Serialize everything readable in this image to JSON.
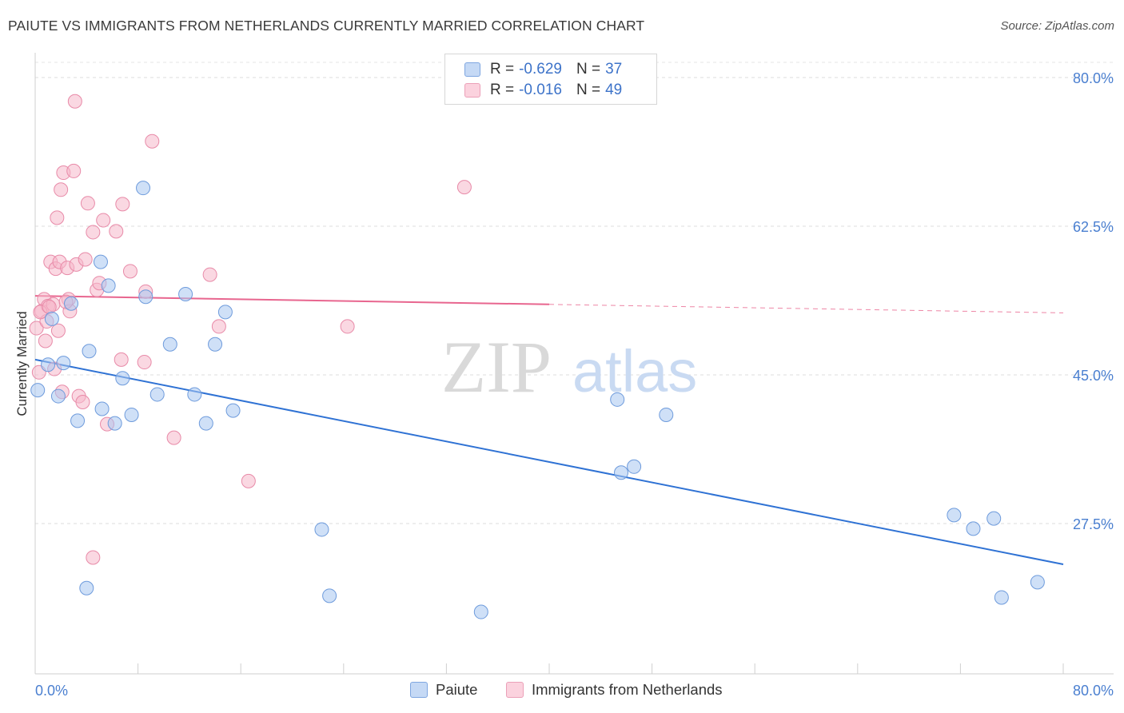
{
  "title": "PAIUTE VS IMMIGRANTS FROM NETHERLANDS CURRENTLY MARRIED CORRELATION CHART",
  "source": "Source: ZipAtlas.com",
  "watermark": {
    "zip": "ZIP",
    "atlas": "atlas"
  },
  "legend": {
    "rows": [
      {
        "r_label": "R =",
        "r_value": "-0.629",
        "n_label": "N =",
        "n_value": "37",
        "color": "#a8c6f0"
      },
      {
        "r_label": "R =",
        "r_value": "-0.016",
        "n_label": "N =",
        "n_value": "49",
        "color": "#f5b8cb"
      }
    ]
  },
  "bottom_legend": {
    "series1": "Paiute",
    "series2": "Immigrants from Netherlands"
  },
  "chart_data": {
    "type": "scatter",
    "xlabel": "",
    "ylabel": "Currently Married",
    "xlim": [
      0,
      80
    ],
    "ylim": [
      10,
      82
    ],
    "x_tick_labels": [
      "0.0%",
      "80.0%"
    ],
    "y_ticks": [
      27.5,
      45.0,
      62.5,
      80.0
    ],
    "y_tick_labels": [
      "27.5%",
      "45.0%",
      "62.5%",
      "80.0%"
    ],
    "colors": {
      "paiute_fill": "#a8c6f0",
      "paiute_stroke": "#6e9bdc",
      "paiute_line": "#2f72d4",
      "neth_fill": "#f5b8cb",
      "neth_stroke": "#e88aa8",
      "neth_line": "#e8668f",
      "axis_text": "#4a7fd0"
    },
    "series": [
      {
        "name": "Paiute",
        "points": [
          [
            0.2,
            43.2
          ],
          [
            1.0,
            46.2
          ],
          [
            1.3,
            51.6
          ],
          [
            1.8,
            42.5
          ],
          [
            2.2,
            46.4
          ],
          [
            2.8,
            53.4
          ],
          [
            3.3,
            39.6
          ],
          [
            4.0,
            19.9
          ],
          [
            4.2,
            47.8
          ],
          [
            5.1,
            58.3
          ],
          [
            5.2,
            41.0
          ],
          [
            5.7,
            55.5
          ],
          [
            6.2,
            39.3
          ],
          [
            6.8,
            44.6
          ],
          [
            7.5,
            40.3
          ],
          [
            8.4,
            67.0
          ],
          [
            8.6,
            54.2
          ],
          [
            9.5,
            42.7
          ],
          [
            10.5,
            48.6
          ],
          [
            11.7,
            54.5
          ],
          [
            12.4,
            42.7
          ],
          [
            13.3,
            39.3
          ],
          [
            14.0,
            48.6
          ],
          [
            14.8,
            52.4
          ],
          [
            15.4,
            40.8
          ],
          [
            22.3,
            26.8
          ],
          [
            22.9,
            19.0
          ],
          [
            34.7,
            17.1
          ],
          [
            45.3,
            42.1
          ],
          [
            45.6,
            33.5
          ],
          [
            46.6,
            34.2
          ],
          [
            49.1,
            40.3
          ],
          [
            71.5,
            28.5
          ],
          [
            73.0,
            26.9
          ],
          [
            74.6,
            28.1
          ],
          [
            75.2,
            18.8
          ],
          [
            78.0,
            20.6
          ]
        ],
        "trend": {
          "x": [
            0,
            80
          ],
          "y": [
            46.8,
            22.7
          ]
        }
      },
      {
        "name": "Immigrants from Netherlands",
        "points": [
          [
            0.1,
            50.5
          ],
          [
            0.3,
            45.3
          ],
          [
            0.5,
            52.5
          ],
          [
            0.7,
            53.9
          ],
          [
            0.9,
            51.3
          ],
          [
            1.0,
            53.1
          ],
          [
            1.2,
            58.3
          ],
          [
            1.4,
            53.3
          ],
          [
            1.5,
            45.7
          ],
          [
            1.6,
            57.5
          ],
          [
            1.7,
            63.5
          ],
          [
            1.8,
            50.2
          ],
          [
            1.9,
            58.3
          ],
          [
            2.0,
            66.8
          ],
          [
            2.1,
            43.0
          ],
          [
            2.2,
            68.8
          ],
          [
            2.5,
            57.6
          ],
          [
            2.6,
            53.9
          ],
          [
            2.7,
            52.5
          ],
          [
            3.0,
            69.0
          ],
          [
            3.1,
            77.2
          ],
          [
            3.2,
            58.0
          ],
          [
            3.4,
            42.5
          ],
          [
            3.7,
            41.8
          ],
          [
            3.9,
            58.6
          ],
          [
            4.1,
            65.2
          ],
          [
            4.5,
            61.8
          ],
          [
            4.8,
            55.0
          ],
          [
            5.0,
            55.8
          ],
          [
            5.3,
            63.2
          ],
          [
            5.6,
            39.2
          ],
          [
            6.3,
            61.9
          ],
          [
            6.7,
            46.8
          ],
          [
            6.8,
            65.1
          ],
          [
            7.4,
            57.2
          ],
          [
            8.5,
            46.5
          ],
          [
            8.6,
            54.8
          ],
          [
            9.1,
            72.5
          ],
          [
            10.8,
            37.6
          ],
          [
            13.6,
            56.8
          ],
          [
            14.3,
            50.7
          ],
          [
            16.6,
            32.5
          ],
          [
            24.3,
            50.7
          ],
          [
            33.4,
            67.1
          ],
          [
            4.5,
            23.5
          ],
          [
            0.4,
            52.4
          ],
          [
            1.1,
            53.0
          ],
          [
            2.4,
            53.6
          ],
          [
            0.8,
            49.0
          ]
        ],
        "trend": {
          "x": [
            0,
            40
          ],
          "y": [
            54.3,
            53.3
          ],
          "dashed_extension": {
            "x": [
              40,
              80
            ],
            "y": [
              53.3,
              52.3
            ]
          }
        }
      }
    ]
  }
}
